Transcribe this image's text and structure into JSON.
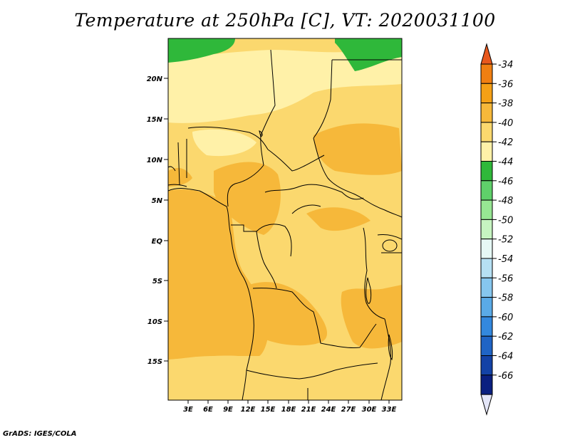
{
  "title": "Temperature at 250hPa [C], VT: 2020031100",
  "credit": "GrADS: IGES/COLA",
  "map": {
    "lat_labels": [
      "20N",
      "15N",
      "10N",
      "5N",
      "EQ",
      "5S",
      "10S",
      "15S"
    ],
    "lon_labels": [
      "3E",
      "6E",
      "9E",
      "12E",
      "15E",
      "18E",
      "21E",
      "24E",
      "27E",
      "30E",
      "33E"
    ]
  },
  "colorbar": {
    "labels": [
      "-34",
      "-36",
      "-38",
      "-40",
      "-42",
      "-44",
      "-46",
      "-48",
      "-50",
      "-52",
      "-54",
      "-56",
      "-58",
      "-60",
      "-62",
      "-64",
      "-66"
    ],
    "colors": [
      "#e8581d",
      "#f07f12",
      "#f5a016",
      "#f6b83a",
      "#fbd86e",
      "#fff1a8",
      "#2fb83a",
      "#5fd06a",
      "#97e693",
      "#c6f4c1",
      "#e6f8f5",
      "#b6e0f3",
      "#86c6ee",
      "#5aaae7",
      "#3388de",
      "#1f64c5",
      "#1342a6",
      "#0a1f80",
      "#e4e6f8"
    ]
  }
}
